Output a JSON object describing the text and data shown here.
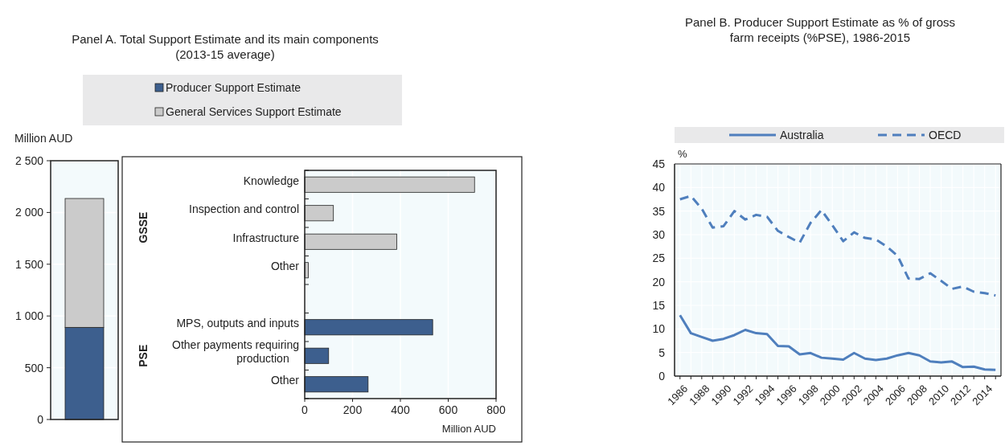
{
  "chart_data": [
    {
      "type": "bar",
      "title": "Panel A. Total Support Estimate and its main components (2013-15 average)",
      "ylabel": "Million AUD",
      "categories": [
        null
      ],
      "stacked": true,
      "series": [
        {
          "name": "Producer Support Estimate",
          "color": "#3d5f8e",
          "values": [
            890
          ]
        },
        {
          "name": "General Services Support Estimate",
          "color": "#cbcbcb",
          "values": [
            1245
          ]
        }
      ],
      "ylim": [
        0,
        2500
      ],
      "yticks": [
        0,
        500,
        {
          "value": 1000,
          "label": "1 000"
        },
        {
          "value": 1500,
          "label": "1 500"
        },
        {
          "value": 2000,
          "label": "2 000"
        },
        {
          "value": 2500,
          "label": "2 500"
        }
      ],
      "grid": "y",
      "legend": "top"
    },
    {
      "type": "bar",
      "orientation": "horizontal",
      "categories": [
        "Knowledge",
        "Inspection and control",
        "Infrastructure",
        "Other",
        null,
        "MPS, outputs and inputs",
        "Other payments requiring production",
        "Other"
      ],
      "values": [
        710,
        120,
        385,
        15,
        null,
        535,
        100,
        265
      ],
      "colors": [
        "#cbcbcb",
        "#cbcbcb",
        "#cbcbcb",
        "#cbcbcb",
        null,
        "#3d5f8e",
        "#3d5f8e",
        "#3d5f8e"
      ],
      "xlim": [
        0,
        800
      ],
      "xticks": [
        0,
        200,
        400,
        600,
        800
      ],
      "xlabel": "Million AUD",
      "annotations": [
        "GSSE",
        "PSE"
      ],
      "grid": "x"
    },
    {
      "type": "line",
      "title": "Panel B. Producer Support Estimate as % of gross farm receipts (%PSE), 1986-2015",
      "ylabel": "%",
      "x": [
        1986,
        1987,
        1988,
        1989,
        1990,
        1991,
        1992,
        1993,
        1994,
        1995,
        1996,
        1997,
        1998,
        1999,
        2000,
        2001,
        2002,
        2003,
        2004,
        2005,
        2006,
        2007,
        2008,
        2009,
        2010,
        2011,
        2012,
        2013,
        2014,
        2015
      ],
      "series": [
        {
          "name": "Australia",
          "color": "#4f7fbd",
          "line_style": "solid",
          "values": [
            12.9,
            9.1,
            8.3,
            7.5,
            7.9,
            8.7,
            9.8,
            9.1,
            8.9,
            6.4,
            6.3,
            4.6,
            4.9,
            3.9,
            3.7,
            3.5,
            4.9,
            3.7,
            3.4,
            3.7,
            4.4,
            4.9,
            4.4,
            3.1,
            2.9,
            3.1,
            1.9,
            2.0,
            1.4,
            1.3
          ]
        },
        {
          "name": "OECD",
          "color": "#4f7fbd",
          "line_style": "dashed",
          "values": [
            37.5,
            38.2,
            35.5,
            31.5,
            31.8,
            35.0,
            33.2,
            34.2,
            33.8,
            30.8,
            29.5,
            28.3,
            32.5,
            35.2,
            32.0,
            28.6,
            30.5,
            29.3,
            29.0,
            27.5,
            25.5,
            20.7,
            20.6,
            21.8,
            20.2,
            18.5,
            19.0,
            17.9,
            17.6,
            17.1
          ]
        }
      ],
      "xlim": [
        1985.5,
        2015.5
      ],
      "ylim": [
        0,
        45
      ],
      "yticks": [
        0,
        5,
        10,
        15,
        20,
        25,
        30,
        35,
        40,
        45
      ],
      "xticks": [
        1986,
        {
          "value": 1987,
          "label": null
        },
        1988,
        {
          "value": 1989,
          "label": null
        },
        1990,
        {
          "value": 1991,
          "label": null
        },
        1992,
        {
          "value": 1993,
          "label": null
        },
        1994,
        {
          "value": 1995,
          "label": null
        },
        1996,
        {
          "value": 1997,
          "label": null
        },
        1998,
        {
          "value": 1999,
          "label": null
        },
        2000,
        {
          "value": 2001,
          "label": null
        },
        2002,
        {
          "value": 2003,
          "label": null
        },
        2004,
        {
          "value": 2005,
          "label": null
        },
        2006,
        {
          "value": 2007,
          "label": null
        },
        2008,
        {
          "value": 2009,
          "label": null
        },
        2010,
        {
          "value": 2011,
          "label": null
        },
        2012,
        {
          "value": 2013,
          "label": null
        },
        2014,
        {
          "value": 2015,
          "label": null
        }
      ],
      "grid": true,
      "legend": "top"
    }
  ]
}
